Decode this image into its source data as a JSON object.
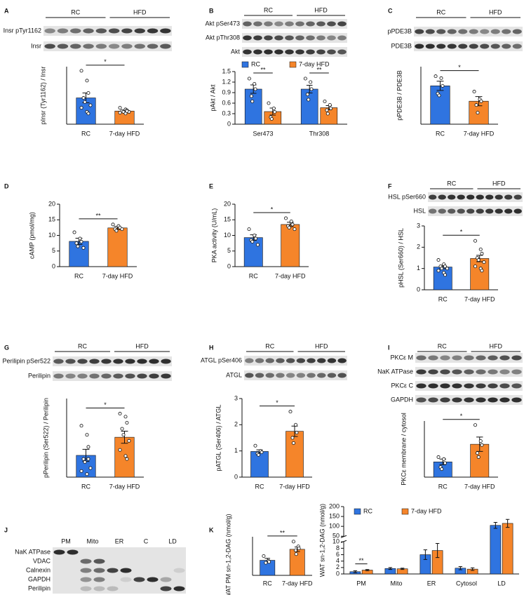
{
  "chart_data": [
    {
      "panel": "A",
      "type": "bar",
      "blot": {
        "groups": [
          "RC",
          "HFD"
        ],
        "rows": [
          "Insr pTyr1162",
          "Insr"
        ]
      },
      "ylabel": "pInsr (Tyr1162) / Insr",
      "categories": [
        "RC",
        "7-day HFD"
      ],
      "values": [
        3.2,
        1.6
      ],
      "errors": [
        0.6,
        0.12
      ],
      "points": [
        [
          6.5,
          5.3,
          3.8,
          3.2,
          2.7,
          2.3,
          2.0,
          1.5,
          1.3
        ],
        [
          2.0,
          1.8,
          1.7,
          1.6,
          1.5,
          1.5,
          1.4,
          1.3,
          1.6
        ]
      ],
      "colors": [
        "#2f74e0",
        "#f5852a"
      ],
      "ylim": [
        0,
        7
      ],
      "significance": "*"
    },
    {
      "panel": "B",
      "type": "grouped_bar",
      "blot": {
        "groups": [
          "RC",
          "HFD"
        ],
        "rows": [
          "Akt pSer473",
          "Akt pThr308",
          "Akt"
        ]
      },
      "ylabel": "pAkt / Akt",
      "categories": [
        "Ser473",
        "Thr308"
      ],
      "series": [
        {
          "name": "RC",
          "color": "#2f74e0",
          "values": [
            1.0,
            1.0
          ],
          "errors": [
            0.12,
            0.11
          ],
          "points": [
            [
              1.3,
              1.15,
              1.0,
              0.8,
              0.65
            ],
            [
              1.3,
              1.2,
              1.0,
              0.85,
              0.7
            ]
          ]
        },
        {
          "name": "7-day HFD",
          "color": "#f5852a",
          "values": [
            0.36,
            0.47
          ],
          "errors": [
            0.1,
            0.06
          ],
          "points": [
            [
              0.6,
              0.45,
              0.35,
              0.2,
              0.15
            ],
            [
              0.65,
              0.55,
              0.45,
              0.4,
              0.3
            ]
          ]
        }
      ],
      "ylim": [
        0,
        1.5
      ],
      "yticks": [
        0,
        0.3,
        0.6,
        0.9,
        1.2,
        1.5
      ],
      "significance": [
        "**",
        "**"
      ]
    },
    {
      "panel": "C",
      "type": "bar",
      "blot": {
        "groups": [
          "RC",
          "HFD"
        ],
        "rows": [
          "pPDE3B",
          "PDE3B"
        ]
      },
      "ylabel": "pPDE3B / PDE3B",
      "categories": [
        "RC",
        "7-day HFD"
      ],
      "values": [
        1.0,
        0.6
      ],
      "errors": [
        0.12,
        0.12
      ],
      "points": [
        [
          1.25,
          1.2,
          1.0,
          0.8,
          0.75
        ],
        [
          0.85,
          0.65,
          0.6,
          0.5,
          0.3
        ]
      ],
      "colors": [
        "#2f74e0",
        "#f5852a"
      ],
      "ylim": [
        0,
        1.5
      ],
      "significance": "*"
    },
    {
      "panel": "D",
      "type": "bar",
      "ylabel": "cAMP (pmol/mg)",
      "categories": [
        "RC",
        "7-day HFD"
      ],
      "values": [
        8.1,
        12.4
      ],
      "errors": [
        1.0,
        0.5
      ],
      "points": [
        [
          11,
          9,
          8,
          7.5,
          6.5,
          6
        ],
        [
          13.5,
          13,
          12.5,
          12,
          11.5,
          12
        ]
      ],
      "colors": [
        "#2f74e0",
        "#f5852a"
      ],
      "ylim": [
        0,
        20
      ],
      "yticks": [
        0,
        5,
        10,
        15,
        20
      ],
      "significance": "**"
    },
    {
      "panel": "E",
      "type": "bar",
      "ylabel": "PKA activity (U/mL)",
      "categories": [
        "RC",
        "7-day HFD"
      ],
      "values": [
        9.3,
        13.5
      ],
      "errors": [
        0.9,
        0.7
      ],
      "points": [
        [
          12,
          10,
          9,
          8.5,
          8,
          7
        ],
        [
          15.5,
          14.5,
          13.5,
          13,
          12.5,
          12
        ]
      ],
      "colors": [
        "#2f74e0",
        "#f5852a"
      ],
      "ylim": [
        0,
        20
      ],
      "yticks": [
        0,
        5,
        10,
        15,
        20
      ],
      "significance": "*"
    },
    {
      "panel": "F",
      "type": "bar",
      "blot": {
        "groups": [
          "RC",
          "HFD"
        ],
        "rows": [
          "HSL pSer660",
          "HSL"
        ]
      },
      "ylabel": "pHSL (Ser660) / HSL",
      "categories": [
        "RC",
        "7-day HFD"
      ],
      "values": [
        1.07,
        1.47
      ],
      "errors": [
        0.08,
        0.15
      ],
      "points": [
        [
          1.4,
          1.2,
          1.1,
          1.1,
          1.0,
          1.0,
          0.9,
          0.8,
          0.7
        ],
        [
          2.3,
          1.9,
          1.7,
          1.5,
          1.4,
          1.3,
          1.1,
          1.0,
          0.9
        ]
      ],
      "colors": [
        "#2f74e0",
        "#f5852a"
      ],
      "ylim": [
        0,
        3
      ],
      "yticks": [
        0,
        1,
        2,
        3
      ],
      "significance": "*"
    },
    {
      "panel": "G",
      "type": "bar",
      "blot": {
        "groups": [
          "RC",
          "HFD"
        ],
        "rows": [
          "Perilipin pSer522",
          "Perilipin"
        ]
      },
      "ylabel": "pPerilipin (Ser522) / Perilipin",
      "categories": [
        "RC",
        "7-day HFD"
      ],
      "values": [
        0.36,
        0.66
      ],
      "errors": [
        0.1,
        0.1
      ],
      "points": [
        [
          0.85,
          0.7,
          0.5,
          0.3,
          0.25,
          0.15,
          0.1,
          0.05,
          0.3
        ],
        [
          1.05,
          1.0,
          0.9,
          0.8,
          0.7,
          0.6,
          0.45,
          0.35,
          0.3
        ]
      ],
      "colors": [
        "#2f74e0",
        "#f5852a"
      ],
      "ylim": [
        0,
        1.3
      ],
      "significance": "*"
    },
    {
      "panel": "H",
      "type": "bar",
      "blot": {
        "groups": [
          "RC",
          "HFD"
        ],
        "rows": [
          "ATGL pSer406",
          "ATGL"
        ]
      },
      "ylabel": "pATGL (Ser406) / ATGL",
      "categories": [
        "RC",
        "7-day HFD"
      ],
      "values": [
        0.98,
        1.75
      ],
      "errors": [
        0.06,
        0.2
      ],
      "points": [
        [
          1.2,
          1.0,
          0.95,
          0.9,
          0.85
        ],
        [
          2.5,
          2.0,
          1.7,
          1.5,
          1.3
        ]
      ],
      "colors": [
        "#2f74e0",
        "#f5852a"
      ],
      "ylim": [
        0,
        3
      ],
      "yticks": [
        0,
        1,
        2,
        3
      ],
      "significance": "*"
    },
    {
      "panel": "I",
      "type": "bar",
      "blot": {
        "groups": [
          "RC",
          "HFD"
        ],
        "rows": [
          "PKCε M",
          "NaK ATPase",
          "PKCε C",
          "GAPDH"
        ]
      },
      "ylabel": "PKCε membrane / cytosol",
      "categories": [
        "RC",
        "7-day HFD"
      ],
      "values": [
        0.38,
        0.82
      ],
      "errors": [
        0.07,
        0.18
      ],
      "points": [
        [
          0.5,
          0.45,
          0.35,
          0.25,
          0.2
        ],
        [
          1.3,
          0.9,
          0.8,
          0.6,
          0.5
        ]
      ],
      "colors": [
        "#2f74e0",
        "#f5852a"
      ],
      "ylim": [
        0,
        1.4
      ],
      "significance": "*"
    },
    {
      "panel": "J",
      "type": "blot",
      "blot": {
        "fractions": [
          "PM",
          "Mito",
          "ER",
          "C",
          "LD"
        ],
        "rows": [
          "NaK ATPase",
          "VDAC",
          "Calnexin",
          "GAPDH",
          "Perilipin"
        ]
      }
    },
    {
      "panel": "K",
      "type": "bar",
      "ylabel": "WAT PM sn-1,2-DAG (nmol/g)",
      "categories": [
        "RC",
        "7-day HFD"
      ],
      "values": [
        0.78,
        1.35
      ],
      "errors": [
        0.1,
        0.12
      ],
      "points": [
        [
          1.0,
          0.75,
          0.7,
          0.65
        ],
        [
          1.75,
          1.5,
          1.4,
          1.3,
          1.1
        ]
      ],
      "colors": [
        "#2f74e0",
        "#f5852a"
      ],
      "ylim": [
        0,
        2
      ],
      "significance": "**"
    },
    {
      "type": "grouped_bar",
      "ylabel": "WAT sn-1,2-DAG (nmol/g)",
      "categories": [
        "PM",
        "Mito",
        "ER",
        "Cytosol",
        "LD"
      ],
      "series": [
        {
          "name": "RC",
          "color": "#2f74e0",
          "values": [
            0.7,
            1.7,
            6.0,
            1.8,
            105
          ],
          "errors": [
            0.3,
            0.3,
            1.5,
            0.5,
            15
          ]
        },
        {
          "name": "7-day HFD",
          "color": "#f5852a",
          "values": [
            1.2,
            1.6,
            7.3,
            1.5,
            115
          ],
          "errors": [
            0.2,
            0.2,
            2.2,
            0.4,
            20
          ]
        }
      ],
      "ylim": [
        0,
        200
      ],
      "ybreak": [
        10,
        50
      ],
      "yticks": [
        0,
        2,
        4,
        6,
        8,
        10,
        50,
        100,
        150,
        200
      ],
      "significance": [
        "**",
        null,
        null,
        null,
        null
      ]
    }
  ]
}
